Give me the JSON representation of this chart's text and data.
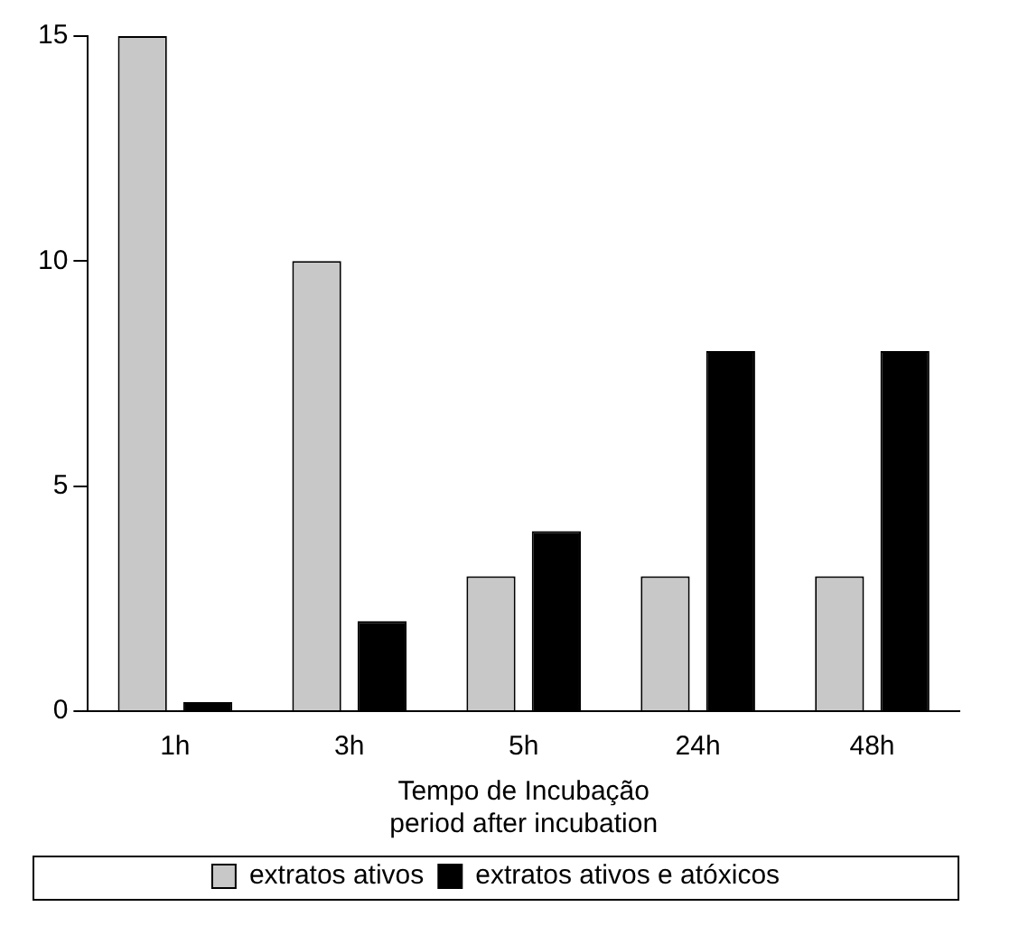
{
  "chart_data": {
    "type": "bar",
    "xlabel": "Tempo de Incubação\nperiod after incubation",
    "categories": [
      "1h",
      "3h",
      "5h",
      "24h",
      "48h"
    ],
    "series": [
      {
        "name": "extratos ativos",
        "color": "#c8c8c8",
        "values": [
          15,
          10,
          3,
          3,
          3
        ]
      },
      {
        "name": "extratos ativos e atóxicos",
        "color": "#000000",
        "values": [
          0.2,
          2,
          4,
          8,
          8
        ]
      }
    ],
    "ylim": [
      0,
      15
    ],
    "yticks": [
      0,
      5,
      10,
      15
    ],
    "grid": false,
    "legend": "bottom"
  }
}
